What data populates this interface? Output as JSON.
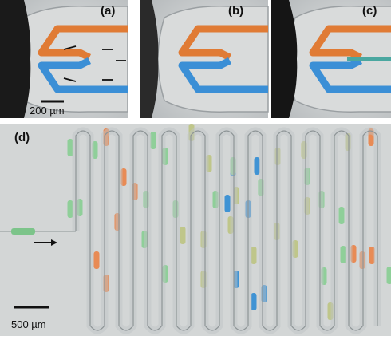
{
  "panels": [
    {
      "label": "(a)",
      "scale_bar": "200 µm"
    },
    {
      "label": "(b)"
    },
    {
      "label": "(c)"
    },
    {
      "label": "(d)",
      "scale_bar": "500 µm"
    }
  ]
}
